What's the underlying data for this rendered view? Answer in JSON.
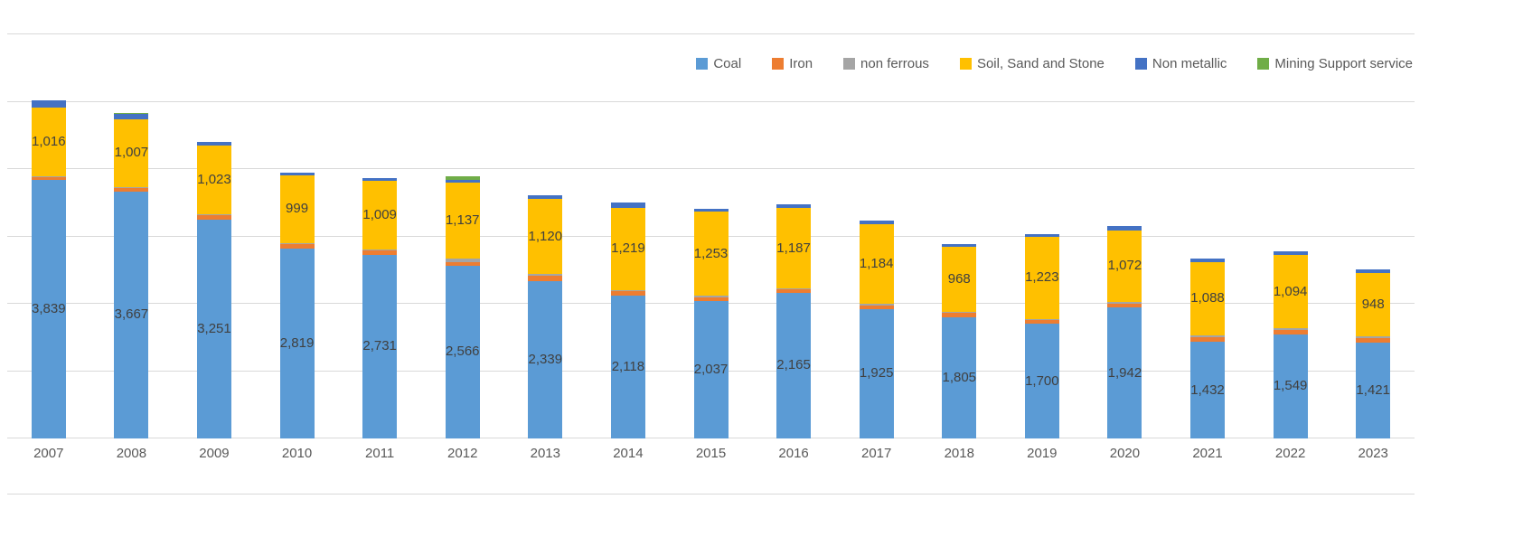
{
  "chart_data": {
    "type": "bar",
    "stacked": true,
    "title": "",
    "xlabel": "",
    "ylabel": "",
    "ylim": [
      0,
      6000
    ],
    "gridline_step": 1000,
    "grid": true,
    "legend_position": "top-right",
    "categories": [
      "2007",
      "2008",
      "2009",
      "2010",
      "2011",
      "2012",
      "2013",
      "2014",
      "2015",
      "2016",
      "2017",
      "2018",
      "2019",
      "2020",
      "2021",
      "2022",
      "2023"
    ],
    "series": [
      {
        "name": "Coal",
        "color": "#5b9bd5",
        "values": [
          3839,
          3667,
          3251,
          2819,
          2731,
          2566,
          2339,
          2118,
          2037,
          2165,
          1925,
          1805,
          1700,
          1942,
          1432,
          1549,
          1421
        ],
        "labels": [
          "3,839",
          "3,667",
          "3,251",
          "2,819",
          "2,731",
          "2,566",
          "2,339",
          "2,118",
          "2,037",
          "2,165",
          "1,925",
          "1,805",
          "1,700",
          "1,942",
          "1,432",
          "1,549",
          "1,421"
        ]
      },
      {
        "name": "Iron",
        "color": "#ed7d31",
        "values": [
          45,
          55,
          60,
          65,
          60,
          55,
          75,
          65,
          60,
          45,
          55,
          55,
          55,
          60,
          75,
          60,
          65
        ],
        "labels": null
      },
      {
        "name": "non ferrous",
        "color": "#a5a5a5",
        "values": [
          15,
          15,
          15,
          20,
          20,
          45,
          25,
          25,
          20,
          20,
          20,
          20,
          20,
          20,
          25,
          25,
          25
        ],
        "labels": null
      },
      {
        "name": "Soil, Sand and Stone",
        "color": "#ffc000",
        "values": [
          1016,
          1007,
          1023,
          999,
          1009,
          1137,
          1120,
          1219,
          1253,
          1187,
          1184,
          968,
          1223,
          1072,
          1088,
          1094,
          948
        ],
        "labels": [
          "1,016",
          "1,007",
          "1,023",
          "999",
          "1,009",
          "1,137",
          "1,120",
          "1,219",
          "1,253",
          "1,187",
          "1,184",
          "968",
          "1,223",
          "1,072",
          "1,088",
          "1,094",
          "948"
        ]
      },
      {
        "name": "Non metallic",
        "color": "#4472c4",
        "values": [
          110,
          70,
          60,
          45,
          40,
          40,
          55,
          75,
          45,
          60,
          50,
          35,
          35,
          55,
          45,
          55,
          45
        ],
        "labels": null
      },
      {
        "name": "Mining Support service",
        "color": "#70ad47",
        "values": [
          0,
          15,
          0,
          0,
          0,
          55,
          0,
          0,
          0,
          0,
          0,
          0,
          0,
          0,
          0,
          0,
          0
        ],
        "labels": null
      }
    ],
    "colors": {
      "gridline": "#d9d9d9",
      "data_label": "#404040",
      "axis_label": "#595959"
    }
  }
}
